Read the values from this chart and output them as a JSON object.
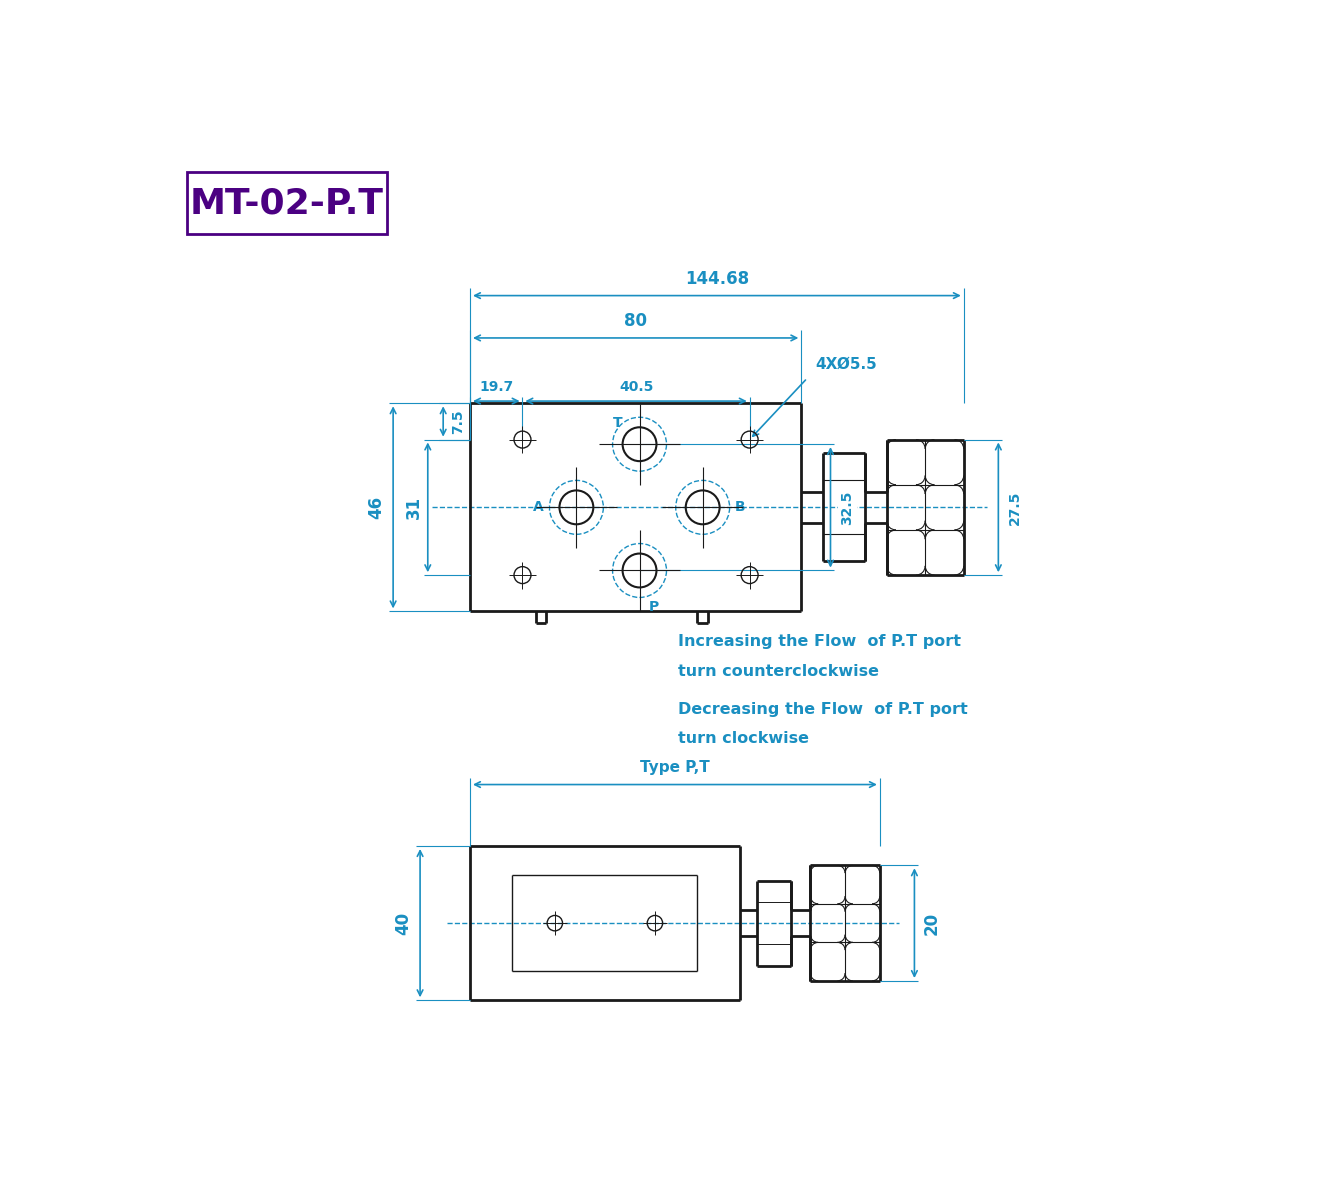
{
  "title": "MT-02-P.T",
  "title_color": "#4B0082",
  "dim_color": "#1a8fc1",
  "draw_color": "#1a1a1a",
  "bg_color": "#FFFFFF",
  "dim_144_68": "144.68",
  "dim_80": "80",
  "dim_7_5": "7.5",
  "dim_19_7": "19.7",
  "dim_40_5": "40.5",
  "dim_4xd5_5": "4XØ5.5",
  "dim_46": "46",
  "dim_31": "31",
  "dim_32_5": "32.5",
  "dim_27_5": "27.5",
  "label_T": "T",
  "label_A": "A",
  "label_B": "B",
  "label_P": "P",
  "text_increase": "Increasing the Flow  of P.T port",
  "text_increase2": "turn counterclockwise",
  "text_decrease": "Decreasing the Flow  of P.T port",
  "text_decrease2": "turn clockwise",
  "type_label": "Type P,T",
  "dim_40": "40",
  "dim_20": "20"
}
